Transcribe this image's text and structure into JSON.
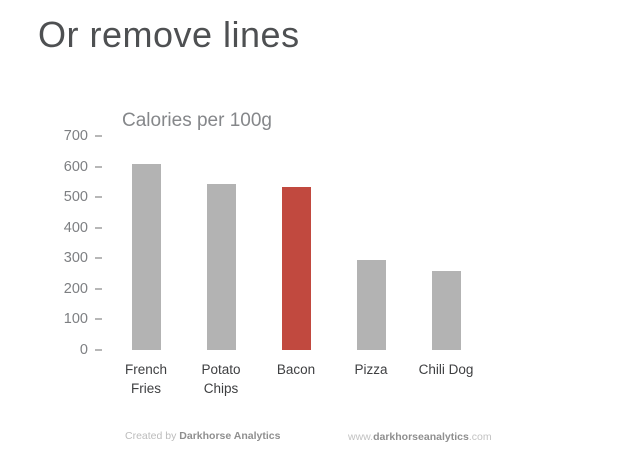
{
  "page": {
    "title": "Or remove lines"
  },
  "chart_data": {
    "type": "bar",
    "title": "Calories per 100g",
    "categories": [
      "French Fries",
      "Potato Chips",
      "Bacon",
      "Pizza",
      "Chili Dog"
    ],
    "values": [
      607,
      542,
      533,
      296,
      260
    ],
    "highlight_index": 2,
    "bar_color": "#b3b3b3",
    "highlight_color": "#c1493f",
    "xlabel": "",
    "ylabel": "",
    "ylim": [
      0,
      700
    ],
    "yticks": [
      700,
      600,
      500,
      400,
      300,
      200,
      100,
      0
    ],
    "grid": false,
    "legend": false
  },
  "footer": {
    "credit_prefix": "Created by ",
    "credit_name": "Darkhorse Analytics",
    "url_prefix": "www.",
    "url_name": "darkhorseanalytics",
    "url_suffix": ".com"
  }
}
